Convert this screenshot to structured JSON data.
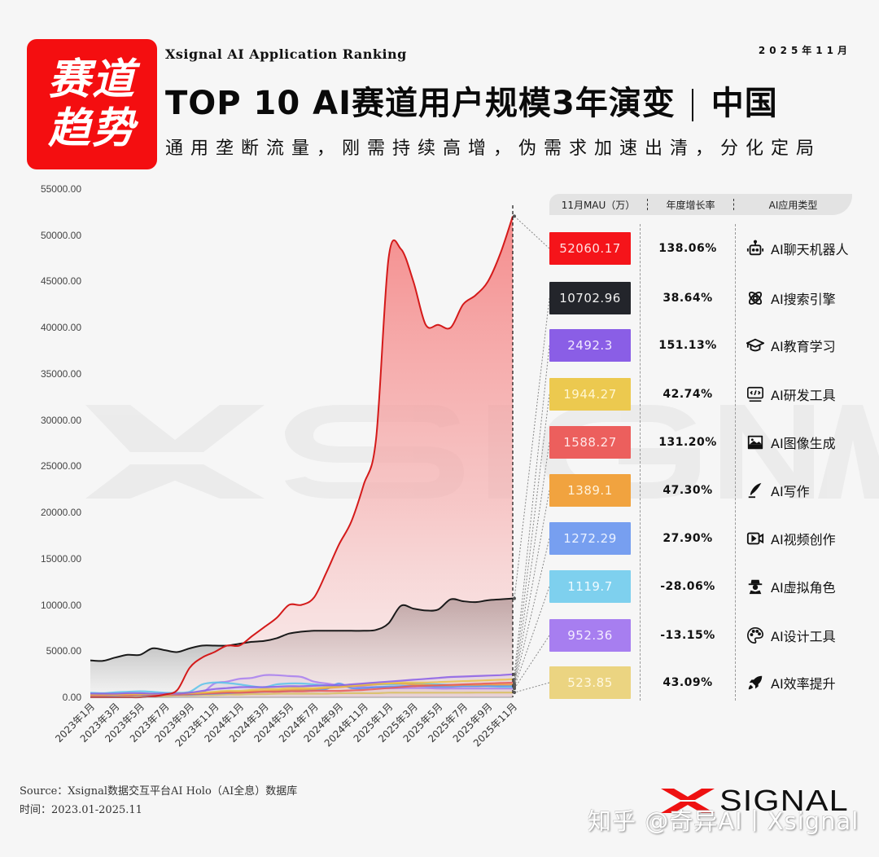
{
  "header": {
    "badge_line1": "赛道",
    "badge_line2": "趋势",
    "subtitle_en": "Xsignal AI Application Ranking",
    "date": "2025年11月",
    "title_main": "TOP 10 AI赛道用户规模3年演变",
    "title_region": "中国",
    "tagline": "通用垄断流量，刚需持续高增，伪需求加速出清，分化定局"
  },
  "table": {
    "headers": [
      "11月MAU（万）",
      "年度增长率",
      "AI应用类型"
    ],
    "rows": [
      {
        "mau": "52060.17",
        "growth": "138.06%",
        "type": "AI聊天机器人",
        "icon": "robot-icon",
        "color": "#f5141a",
        "text_color": "#ffe0e0"
      },
      {
        "mau": "10702.96",
        "growth": "38.64%",
        "type": "AI搜索引擎",
        "icon": "atom-icon",
        "color": "#23252b",
        "text_color": "#f0f0f0"
      },
      {
        "mau": "2492.3",
        "growth": "151.13%",
        "type": "AI教育学习",
        "icon": "graduation-cap-icon",
        "color": "#8a5ee6",
        "text_color": "#f2eaff"
      },
      {
        "mau": "1944.27",
        "growth": "42.74%",
        "type": "AI研发工具",
        "icon": "code-monitor-icon",
        "color": "#ecc94f",
        "text_color": "#fff6d0"
      },
      {
        "mau": "1588.27",
        "growth": "131.20%",
        "type": "AI图像生成",
        "icon": "image-icon",
        "color": "#ec5f5d",
        "text_color": "#ffe6e6"
      },
      {
        "mau": "1389.1",
        "growth": "47.30%",
        "type": "AI写作",
        "icon": "quill-icon",
        "color": "#f1a33f",
        "text_color": "#fff2dc"
      },
      {
        "mau": "1272.29",
        "growth": "27.90%",
        "type": "AI视频创作",
        "icon": "video-icon",
        "color": "#779ff0",
        "text_color": "#eaf1ff"
      },
      {
        "mau": "1119.7",
        "growth": "-28.06%",
        "type": "AI虚拟角色",
        "icon": "spy-character-icon",
        "color": "#7ed0ee",
        "text_color": "#eefaff"
      },
      {
        "mau": "952.36",
        "growth": "-13.15%",
        "type": "AI设计工具",
        "icon": "palette-icon",
        "color": "#a77ef0",
        "text_color": "#f3ecff"
      },
      {
        "mau": "523.85",
        "growth": "43.09%",
        "type": "AI效率提升",
        "icon": "rocket-icon",
        "color": "#ebd481",
        "text_color": "#fff8e0"
      }
    ]
  },
  "footer": {
    "source": "Source：Xsignal数据交互平台AI Holo（AI全息）数据库",
    "time": "时间：2023.01-2025.11",
    "brand": "SIGNAL",
    "watermark": "知乎 @奇异AI丨Xsignal",
    "background_watermark": "XSIGNAL"
  },
  "chart_data": {
    "type": "area",
    "title": "TOP 10 AI赛道用户规模3年演变｜中国",
    "xlabel": "",
    "ylabel": "MAU（万）",
    "ylim": [
      0,
      55000
    ],
    "yticks": [
      "0.00",
      "5000.00",
      "10000.00",
      "15000.00",
      "20000.00",
      "25000.00",
      "30000.00",
      "35000.00",
      "40000.00",
      "45000.00",
      "50000.00",
      "55000.00"
    ],
    "x_tick_labels": [
      "2023年1月",
      "2023年3月",
      "2023年5月",
      "2023年7月",
      "2023年9月",
      "2023年11月",
      "2024年1月",
      "2024年3月",
      "2024年5月",
      "2024年7月",
      "2024年9月",
      "2024年11月",
      "2025年1月",
      "2025年3月",
      "2025年5月",
      "2025年7月",
      "2025年9月",
      "2025年11月"
    ],
    "x": [
      "2023-01",
      "2023-02",
      "2023-03",
      "2023-04",
      "2023-05",
      "2023-06",
      "2023-07",
      "2023-08",
      "2023-09",
      "2023-10",
      "2023-11",
      "2023-12",
      "2024-01",
      "2024-02",
      "2024-03",
      "2024-04",
      "2024-05",
      "2024-06",
      "2024-07",
      "2024-08",
      "2024-09",
      "2024-10",
      "2024-11",
      "2024-12",
      "2025-01",
      "2025-02",
      "2025-03",
      "2025-04",
      "2025-05",
      "2025-06",
      "2025-07",
      "2025-08",
      "2025-09",
      "2025-10",
      "2025-11"
    ],
    "grid": false,
    "legend_position": "right table",
    "series": [
      {
        "name": "AI聊天机器人",
        "color": "#d41a1a",
        "values": [
          0,
          0,
          0,
          0,
          0,
          100,
          300,
          800,
          3200,
          4300,
          4900,
          5600,
          5600,
          6600,
          7600,
          8600,
          10000,
          10000,
          10800,
          13500,
          16500,
          19000,
          23000,
          28000,
          47500,
          48500,
          45000,
          40300,
          40300,
          40000,
          42500,
          43500,
          45000,
          48000,
          52060.17
        ]
      },
      {
        "name": "AI搜索引擎",
        "color": "#1a1a1a",
        "values": [
          4000,
          3950,
          4300,
          4600,
          4600,
          5300,
          5100,
          4900,
          5300,
          5600,
          5600,
          5600,
          5800,
          6000,
          6100,
          6400,
          6900,
          7100,
          7200,
          7200,
          7200,
          7200,
          7200,
          7300,
          8000,
          9900,
          9600,
          9400,
          9500,
          10600,
          10400,
          10300,
          10500,
          10600,
          10702.96
        ]
      },
      {
        "name": "AI教育学习",
        "color": "#8a5ee6",
        "values": [
          400,
          400,
          400,
          450,
          450,
          400,
          400,
          400,
          500,
          700,
          900,
          1000,
          1100,
          1100,
          1100,
          1150,
          1200,
          1200,
          1250,
          1300,
          1300,
          1400,
          1500,
          1600,
          1700,
          1800,
          1900,
          2000,
          2100,
          2200,
          2250,
          2300,
          2350,
          2400,
          2492.3
        ]
      },
      {
        "name": "AI研发工具",
        "color": "#e8c34a",
        "values": [
          300,
          300,
          300,
          350,
          350,
          350,
          350,
          400,
          450,
          500,
          600,
          700,
          700,
          800,
          900,
          900,
          1000,
          1000,
          1000,
          1100,
          1200,
          1300,
          1400,
          1500,
          1500,
          1600,
          1600,
          1600,
          1650,
          1700,
          1750,
          1800,
          1850,
          1900,
          1944.27
        ]
      },
      {
        "name": "AI图像生成",
        "color": "#e85a58",
        "values": [
          200,
          200,
          250,
          250,
          300,
          300,
          300,
          300,
          350,
          400,
          450,
          500,
          500,
          550,
          600,
          600,
          650,
          650,
          700,
          700,
          700,
          750,
          800,
          900,
          1000,
          1100,
          1200,
          1250,
          1300,
          1350,
          1400,
          1450,
          1500,
          1550,
          1588.27
        ]
      },
      {
        "name": "AI写作",
        "color": "#f0a03a",
        "values": [
          300,
          300,
          300,
          300,
          350,
          350,
          350,
          400,
          450,
          500,
          550,
          600,
          600,
          650,
          700,
          750,
          800,
          850,
          900,
          1000,
          1100,
          1200,
          1300,
          1400,
          1500,
          1500,
          1400,
          1350,
          1300,
          1300,
          1350,
          1350,
          1380,
          1380,
          1389.1
        ]
      },
      {
        "name": "AI视频创作",
        "color": "#5b8ef0",
        "values": [
          200,
          200,
          200,
          250,
          250,
          250,
          300,
          300,
          300,
          350,
          400,
          450,
          500,
          550,
          600,
          650,
          700,
          750,
          800,
          900,
          1500,
          1000,
          1000,
          1100,
          1150,
          1200,
          1250,
          1200,
          1150,
          1150,
          1200,
          1200,
          1250,
          1250,
          1272.29
        ]
      },
      {
        "name": "AI虚拟角色",
        "color": "#5cc3ea",
        "values": [
          500,
          450,
          550,
          600,
          650,
          600,
          500,
          500,
          600,
          1400,
          1600,
          1550,
          1400,
          1200,
          1100,
          1400,
          1500,
          1500,
          1400,
          1300,
          1200,
          1300,
          1300,
          1400,
          1400,
          1450,
          1500,
          1450,
          1400,
          1350,
          1300,
          1250,
          1200,
          1150,
          1119.7
        ]
      },
      {
        "name": "AI设计工具",
        "color": "#a77ef0",
        "values": [
          300,
          300,
          300,
          300,
          350,
          350,
          350,
          400,
          450,
          500,
          1500,
          1700,
          2000,
          2100,
          2400,
          2400,
          2300,
          2200,
          1700,
          1500,
          1300,
          1200,
          1100,
          1100,
          1000,
          1000,
          1000,
          1000,
          950,
          950,
          950,
          950,
          950,
          950,
          952.36
        ]
      },
      {
        "name": "AI效率提升",
        "color": "#d8c060",
        "values": [
          100,
          100,
          100,
          100,
          150,
          150,
          150,
          200,
          200,
          250,
          250,
          300,
          300,
          350,
          350,
          400,
          400,
          400,
          400,
          400,
          450,
          450,
          450,
          450,
          500,
          500,
          500,
          500,
          500,
          500,
          500,
          510,
          515,
          520,
          523.85
        ]
      }
    ]
  }
}
